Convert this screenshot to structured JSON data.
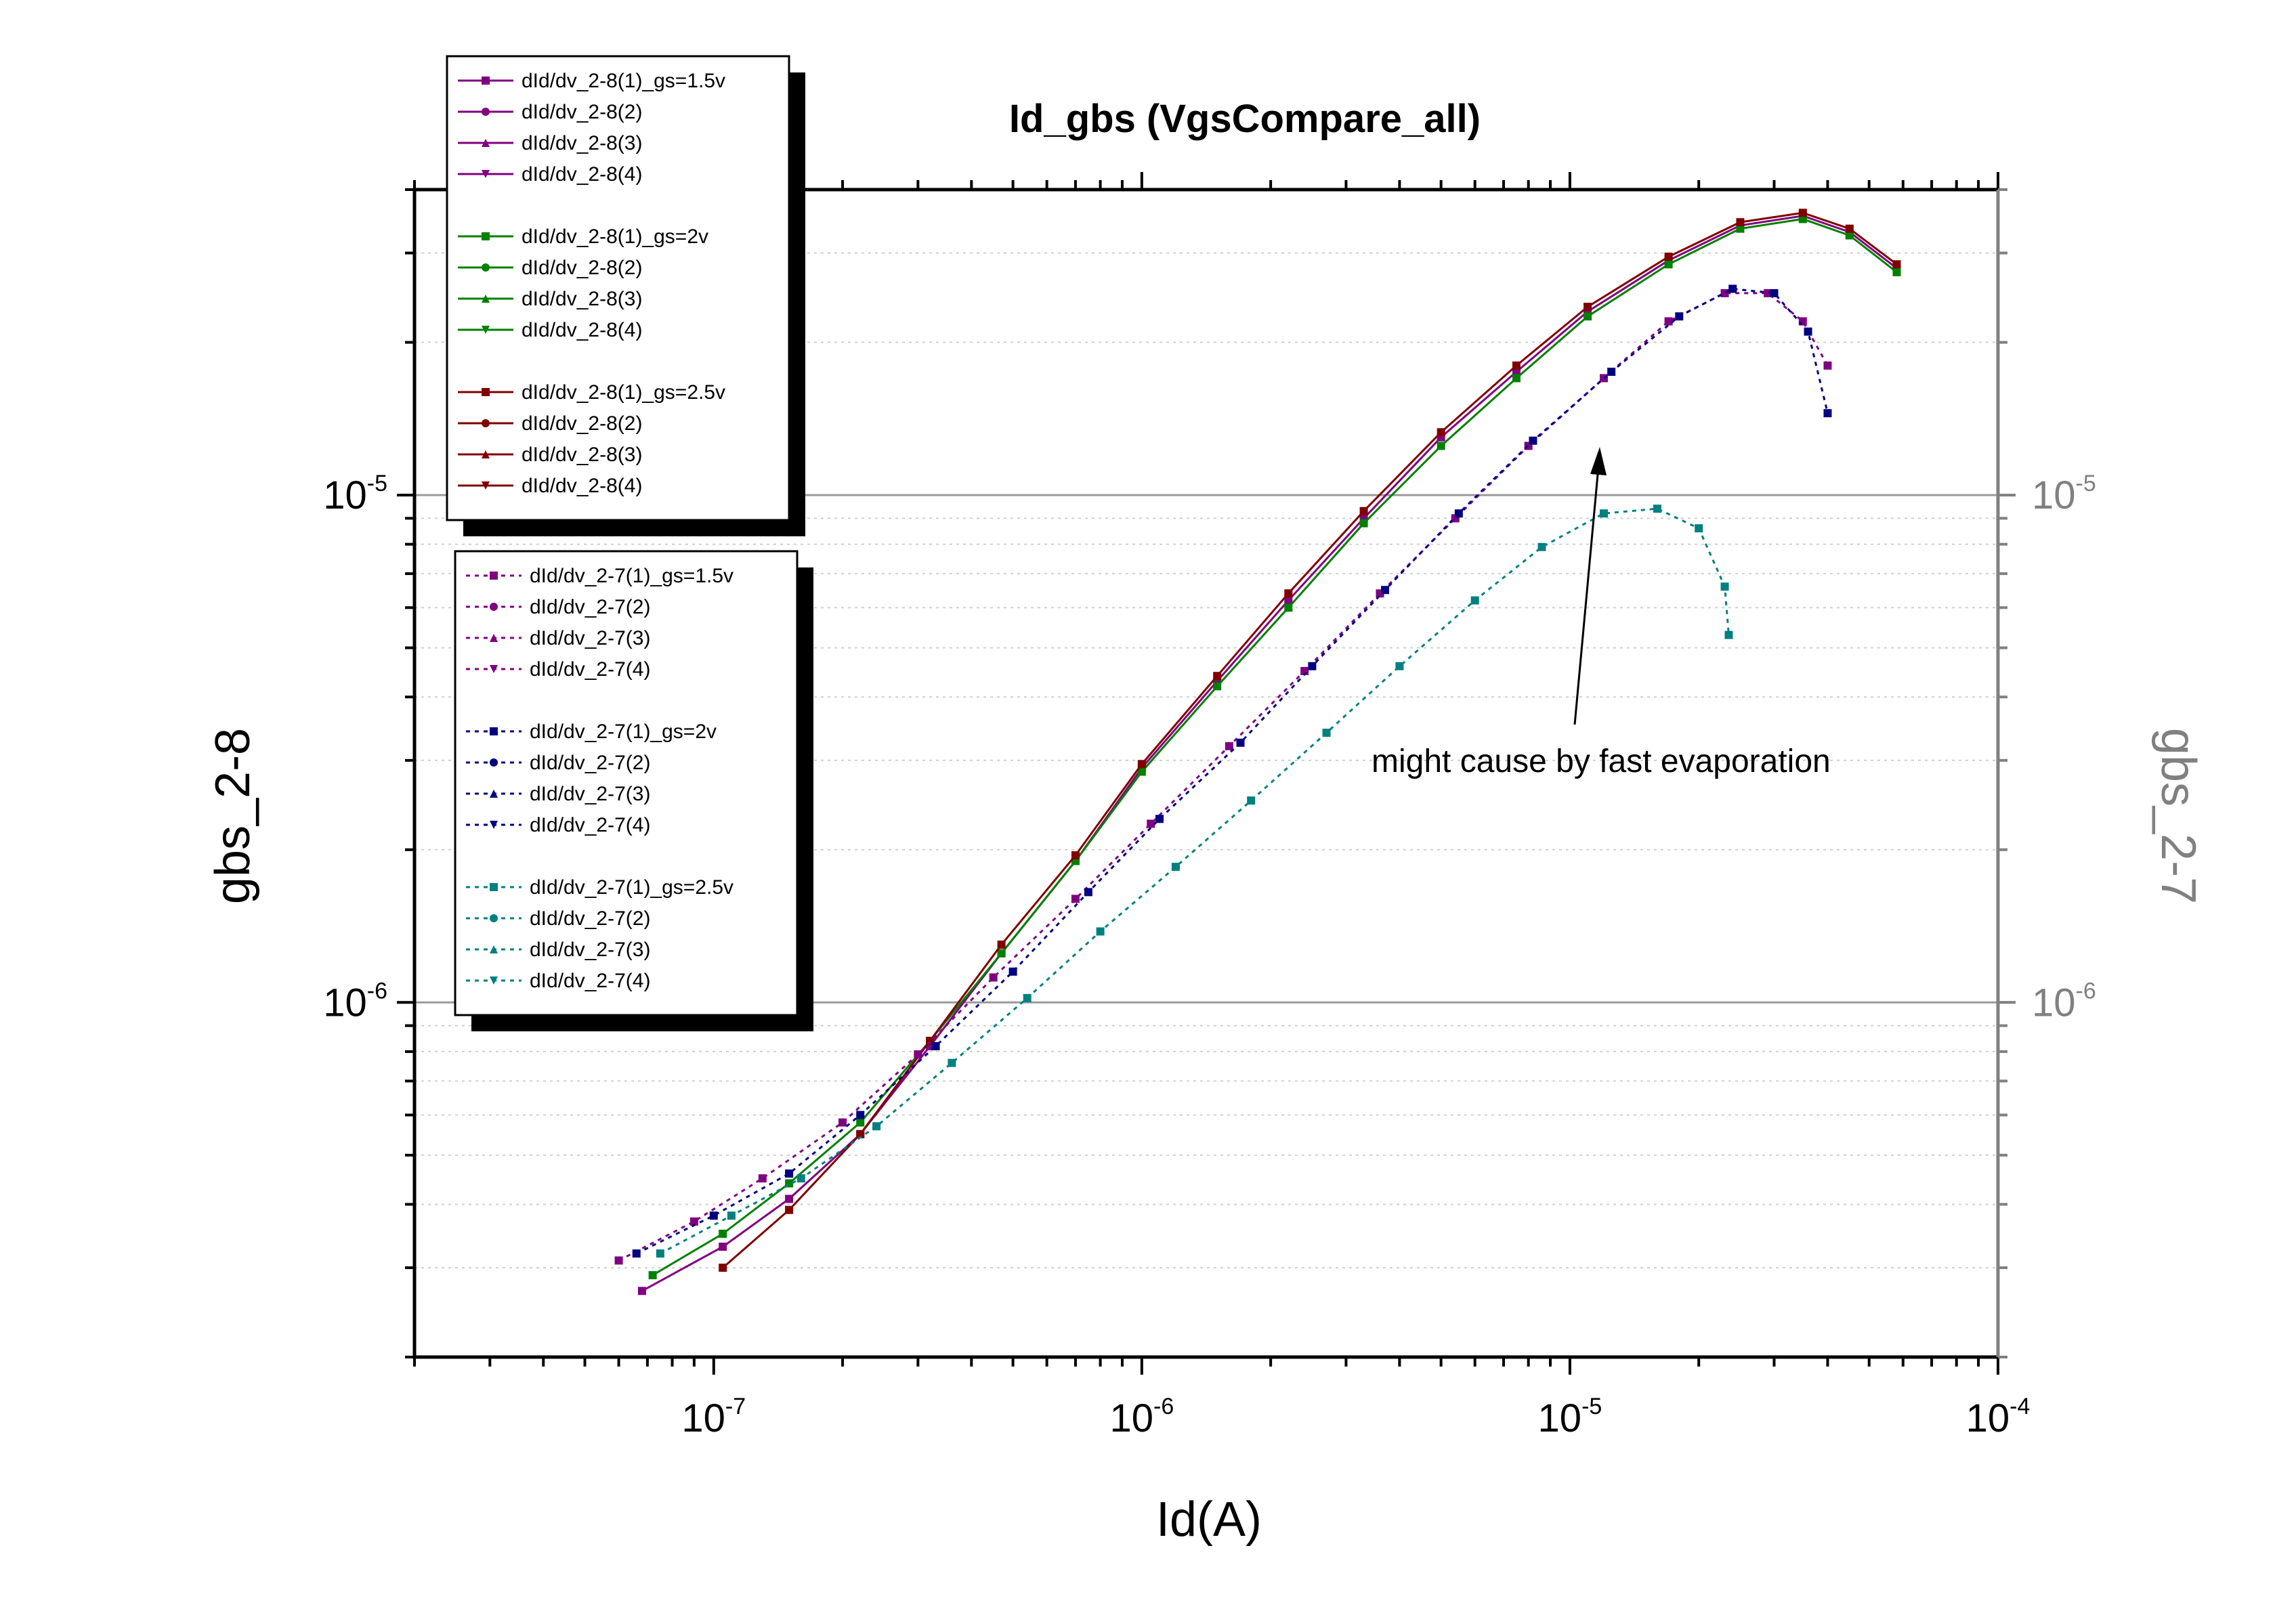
{
  "chart_data": {
    "type": "scatter",
    "title": "Id_gbs  (VgsCompare_all)",
    "xlabel": "Id(A)",
    "ylabel": "gbs_2-8",
    "y2label": "gbs_2-7",
    "x_scale": "log",
    "y_scale": "log",
    "xlim": [
      2e-08,
      0.0001
    ],
    "ylim": [
      2e-07,
      4e-05
    ],
    "x_ticks": [
      {
        "value": 1e-07,
        "base": "10",
        "exp": "-7"
      },
      {
        "value": 1e-06,
        "base": "10",
        "exp": "-6"
      },
      {
        "value": 1e-05,
        "base": "10",
        "exp": "-5"
      },
      {
        "value": 0.0001,
        "base": "10",
        "exp": "-4"
      }
    ],
    "y_ticks": [
      {
        "value": 1e-06,
        "base": "10",
        "exp": "-6"
      },
      {
        "value": 1e-05,
        "base": "10",
        "exp": "-5"
      }
    ],
    "annotation": {
      "text": "might cause by fast evaporation",
      "x": 1.2e-05,
      "y": 1.5e-05
    },
    "grid": "minor gray dotted, major gray solid",
    "colors": {
      "purple": "#800080",
      "green": "#008000",
      "darkred": "#800000",
      "navy": "#000080",
      "teal": "#008080",
      "axis2": "#808080"
    },
    "legend1": {
      "position": "top-left",
      "groups": [
        {
          "color": "#800080",
          "entries": [
            {
              "label": "dId/dv_2-8(1)_gs=1.5v",
              "marker": "square"
            },
            {
              "label": "dId/dv_2-8(2)",
              "marker": "circle"
            },
            {
              "label": "dId/dv_2-8(3)",
              "marker": "triangle-up"
            },
            {
              "label": "dId/dv_2-8(4)",
              "marker": "triangle-down"
            }
          ]
        },
        {
          "color": "#008000",
          "entries": [
            {
              "label": "dId/dv_2-8(1)_gs=2v",
              "marker": "square"
            },
            {
              "label": "dId/dv_2-8(2)",
              "marker": "circle"
            },
            {
              "label": "dId/dv_2-8(3)",
              "marker": "triangle-up"
            },
            {
              "label": "dId/dv_2-8(4)",
              "marker": "triangle-down"
            }
          ]
        },
        {
          "color": "#800000",
          "entries": [
            {
              "label": "dId/dv_2-8(1)_gs=2.5v",
              "marker": "square"
            },
            {
              "label": "dId/dv_2-8(2)",
              "marker": "circle"
            },
            {
              "label": "dId/dv_2-8(3)",
              "marker": "triangle-up"
            },
            {
              "label": "dId/dv_2-8(4)",
              "marker": "triangle-down"
            }
          ]
        }
      ]
    },
    "legend2": {
      "position": "left",
      "groups": [
        {
          "color": "#800080",
          "entries": [
            {
              "label": "dId/dv_2-7(1)_gs=1.5v",
              "marker": "square"
            },
            {
              "label": "dId/dv_2-7(2)",
              "marker": "circle"
            },
            {
              "label": "dId/dv_2-7(3)",
              "marker": "triangle-up"
            },
            {
              "label": "dId/dv_2-7(4)",
              "marker": "triangle-down"
            }
          ]
        },
        {
          "color": "#000080",
          "entries": [
            {
              "label": "dId/dv_2-7(1)_gs=2v",
              "marker": "square"
            },
            {
              "label": "dId/dv_2-7(2)",
              "marker": "circle"
            },
            {
              "label": "dId/dv_2-7(3)",
              "marker": "triangle-up"
            },
            {
              "label": "dId/dv_2-7(4)",
              "marker": "triangle-down"
            }
          ]
        },
        {
          "color": "#008080",
          "entries": [
            {
              "label": "dId/dv_2-7(1)_gs=2.5v",
              "marker": "square"
            },
            {
              "label": "dId/dv_2-7(2)",
              "marker": "circle"
            },
            {
              "label": "dId/dv_2-7(3)",
              "marker": "triangle-up"
            },
            {
              "label": "dId/dv_2-7(4)",
              "marker": "triangle-down"
            }
          ]
        }
      ]
    },
    "series": [
      {
        "color": "#800080",
        "line": "solid",
        "marker": "square",
        "points": [
          [
            6.8e-08,
            2.7e-07
          ],
          [
            1.05e-07,
            3.3e-07
          ],
          [
            1.5e-07,
            4.1e-07
          ],
          [
            2.2e-07,
            5.5e-07
          ],
          [
            3.2e-07,
            8.2e-07
          ],
          [
            4.7e-07,
            1.25e-06
          ],
          [
            7e-07,
            1.9e-06
          ],
          [
            1e-06,
            2.9e-06
          ],
          [
            1.5e-06,
            4.3e-06
          ],
          [
            2.2e-06,
            6.2e-06
          ],
          [
            3.3e-06,
            9e-06
          ],
          [
            5e-06,
            1.3e-05
          ],
          [
            7.5e-06,
            1.75e-05
          ],
          [
            1.1e-05,
            2.3e-05
          ],
          [
            1.7e-05,
            2.9e-05
          ],
          [
            2.5e-05,
            3.4e-05
          ],
          [
            3.5e-05,
            3.55e-05
          ],
          [
            4.5e-05,
            3.3e-05
          ],
          [
            5.8e-05,
            2.8e-05
          ]
        ]
      },
      {
        "color": "#008000",
        "line": "solid",
        "marker": "square",
        "points": [
          [
            7.2e-08,
            2.9e-07
          ],
          [
            1.05e-07,
            3.5e-07
          ],
          [
            1.5e-07,
            4.4e-07
          ],
          [
            2.2e-07,
            5.8e-07
          ],
          [
            3.2e-07,
            8.4e-07
          ],
          [
            4.7e-07,
            1.25e-06
          ],
          [
            7e-07,
            1.9e-06
          ],
          [
            1e-06,
            2.85e-06
          ],
          [
            1.5e-06,
            4.2e-06
          ],
          [
            2.2e-06,
            6e-06
          ],
          [
            3.3e-06,
            8.8e-06
          ],
          [
            5e-06,
            1.25e-05
          ],
          [
            7.5e-06,
            1.7e-05
          ],
          [
            1.1e-05,
            2.25e-05
          ],
          [
            1.7e-05,
            2.85e-05
          ],
          [
            2.5e-05,
            3.35e-05
          ],
          [
            3.5e-05,
            3.5e-05
          ],
          [
            4.5e-05,
            3.25e-05
          ],
          [
            5.8e-05,
            2.75e-05
          ]
        ]
      },
      {
        "color": "#800000",
        "line": "solid",
        "marker": "square",
        "points": [
          [
            1.05e-07,
            3e-07
          ],
          [
            1.5e-07,
            3.9e-07
          ],
          [
            2.2e-07,
            5.5e-07
          ],
          [
            3.2e-07,
            8.4e-07
          ],
          [
            4.7e-07,
            1.3e-06
          ],
          [
            7e-07,
            1.95e-06
          ],
          [
            1e-06,
            2.95e-06
          ],
          [
            1.5e-06,
            4.4e-06
          ],
          [
            2.2e-06,
            6.4e-06
          ],
          [
            3.3e-06,
            9.3e-06
          ],
          [
            5e-06,
            1.33e-05
          ],
          [
            7.5e-06,
            1.8e-05
          ],
          [
            1.1e-05,
            2.35e-05
          ],
          [
            1.7e-05,
            2.95e-05
          ],
          [
            2.5e-05,
            3.45e-05
          ],
          [
            3.5e-05,
            3.6e-05
          ],
          [
            4.5e-05,
            3.35e-05
          ],
          [
            5.8e-05,
            2.85e-05
          ]
        ]
      },
      {
        "color": "#800080",
        "line": "dotted",
        "marker": "square",
        "points": [
          [
            6e-08,
            3.1e-07
          ],
          [
            9e-08,
            3.7e-07
          ],
          [
            1.3e-07,
            4.5e-07
          ],
          [
            2e-07,
            5.8e-07
          ],
          [
            3e-07,
            7.9e-07
          ],
          [
            4.5e-07,
            1.12e-06
          ],
          [
            7e-07,
            1.6e-06
          ],
          [
            1.05e-06,
            2.25e-06
          ],
          [
            1.6e-06,
            3.2e-06
          ],
          [
            2.4e-06,
            4.5e-06
          ],
          [
            3.6e-06,
            6.4e-06
          ],
          [
            5.4e-06,
            9e-06
          ],
          [
            8e-06,
            1.25e-05
          ],
          [
            1.2e-05,
            1.7e-05
          ],
          [
            1.7e-05,
            2.2e-05
          ],
          [
            2.3e-05,
            2.5e-05
          ],
          [
            2.9e-05,
            2.5e-05
          ],
          [
            3.5e-05,
            2.2e-05
          ],
          [
            4e-05,
            1.8e-05
          ]
        ]
      },
      {
        "color": "#000080",
        "line": "dotted",
        "marker": "square",
        "points": [
          [
            6.6e-08,
            3.2e-07
          ],
          [
            1e-07,
            3.8e-07
          ],
          [
            1.5e-07,
            4.6e-07
          ],
          [
            2.2e-07,
            6e-07
          ],
          [
            3.3e-07,
            8.2e-07
          ],
          [
            5e-07,
            1.15e-06
          ],
          [
            7.5e-07,
            1.65e-06
          ],
          [
            1.1e-06,
            2.3e-06
          ],
          [
            1.7e-06,
            3.25e-06
          ],
          [
            2.5e-06,
            4.6e-06
          ],
          [
            3.7e-06,
            6.5e-06
          ],
          [
            5.5e-06,
            9.2e-06
          ],
          [
            8.2e-06,
            1.28e-05
          ],
          [
            1.25e-05,
            1.75e-05
          ],
          [
            1.8e-05,
            2.25e-05
          ],
          [
            2.4e-05,
            2.55e-05
          ],
          [
            3e-05,
            2.5e-05
          ],
          [
            3.6e-05,
            2.1e-05
          ],
          [
            4e-05,
            1.45e-05
          ]
        ]
      },
      {
        "color": "#008080",
        "line": "dotted",
        "marker": "square",
        "points": [
          [
            7.5e-08,
            3.2e-07
          ],
          [
            1.1e-07,
            3.8e-07
          ],
          [
            1.6e-07,
            4.5e-07
          ],
          [
            2.4e-07,
            5.7e-07
          ],
          [
            3.6e-07,
            7.6e-07
          ],
          [
            5.4e-07,
            1.02e-06
          ],
          [
            8e-07,
            1.38e-06
          ],
          [
            1.2e-06,
            1.85e-06
          ],
          [
            1.8e-06,
            2.5e-06
          ],
          [
            2.7e-06,
            3.4e-06
          ],
          [
            4e-06,
            4.6e-06
          ],
          [
            6e-06,
            6.2e-06
          ],
          [
            8.6e-06,
            7.9e-06
          ],
          [
            1.2e-05,
            9.2e-06
          ],
          [
            1.6e-05,
            9.4e-06
          ],
          [
            2e-05,
            8.6e-06
          ],
          [
            2.3e-05,
            6.6e-06
          ],
          [
            2.35e-05,
            5.3e-06
          ]
        ]
      }
    ]
  }
}
